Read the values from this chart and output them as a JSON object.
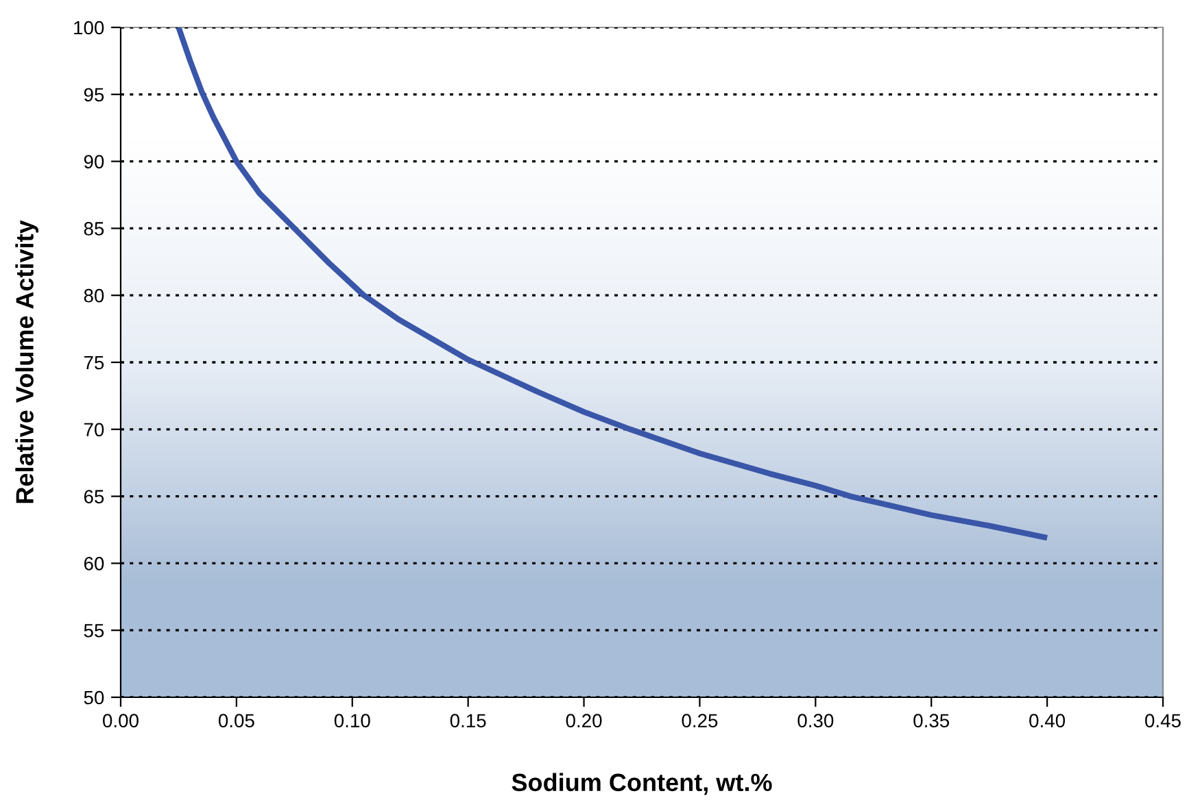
{
  "chart_data": {
    "type": "line",
    "xlabel": "Sodium Content, wt.%",
    "ylabel": "Relative Volume Activity",
    "series": [
      {
        "color": "#3a56a8",
        "x": [
          0.025,
          0.03,
          0.035,
          0.04,
          0.05,
          0.06,
          0.075,
          0.09,
          0.105,
          0.12,
          0.15,
          0.18,
          0.2,
          0.22,
          0.25,
          0.28,
          0.3,
          0.315,
          0.35,
          0.375,
          0.4
        ],
        "values": [
          100,
          97.5,
          95.2,
          93.3,
          90,
          87.6,
          85,
          82.4,
          80,
          78.2,
          75.2,
          72.8,
          71.3,
          70,
          68.2,
          66.7,
          65.8,
          65,
          63.6,
          62.8,
          61.9
        ]
      }
    ],
    "xlim": [
      0,
      0.45
    ],
    "xticks": [
      {
        "value": 0,
        "label": "0.00"
      },
      {
        "value": 0.05,
        "label": "0.05"
      },
      {
        "value": 0.1,
        "label": "0.10"
      },
      {
        "value": 0.15,
        "label": "0.15"
      },
      {
        "value": 0.2,
        "label": "0.20"
      },
      {
        "value": 0.25,
        "label": "0.25"
      },
      {
        "value": 0.3,
        "label": "0.30"
      },
      {
        "value": 0.35,
        "label": "0.35"
      },
      {
        "value": 0.4,
        "label": "0.40"
      },
      {
        "value": 0.45,
        "label": "0.45"
      }
    ],
    "ylim": [
      50,
      100
    ],
    "yticks": [
      50,
      55,
      60,
      65,
      70,
      75,
      80,
      85,
      90,
      95,
      100
    ],
    "grid": "y",
    "marker": "none",
    "line_style": "solid"
  }
}
